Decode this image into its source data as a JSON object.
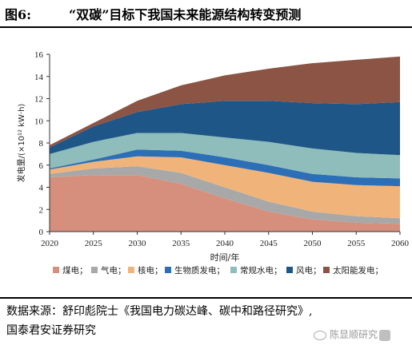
{
  "figure": {
    "number": "图6:",
    "title": "“双碳”目标下我国未来能源结构转变预测"
  },
  "source": {
    "line1": "数据来源：舒印彪院士《我国电力碳达峰、碳中和路径研究》,",
    "line2": "国泰君安证券研究"
  },
  "watermark": {
    "text": "陈显顺研究"
  },
  "chart_data": {
    "type": "area",
    "stacked": true,
    "title": "",
    "xlabel": "时间/年",
    "ylabel": "发电量/(×10¹² kW·h)",
    "x": [
      2020,
      2025,
      2030,
      2035,
      2040,
      2045,
      2050,
      2055,
      2060
    ],
    "xlim": [
      2020,
      2060
    ],
    "ylim": [
      0,
      16
    ],
    "yticks": [
      0,
      2,
      4,
      6,
      8,
      10,
      12,
      14,
      16
    ],
    "xtick_labels": [
      "2020",
      "2025",
      "2030",
      "2035",
      "2040",
      "2045",
      "2050",
      "2055",
      "2060"
    ],
    "ytick_labels": [
      "0",
      "2",
      "4",
      "6",
      "8",
      "10",
      "12",
      "14",
      "16"
    ],
    "grid": false,
    "legend_position": "bottom",
    "series": [
      {
        "name": "煤电",
        "color": "#d68f7c",
        "values": [
          4.9,
          5.1,
          5.1,
          4.3,
          3.0,
          1.8,
          1.1,
          0.8,
          0.7
        ]
      },
      {
        "name": "气电",
        "color": "#a8a8a8",
        "values": [
          0.3,
          0.6,
          0.8,
          1.0,
          1.0,
          0.9,
          0.7,
          0.6,
          0.5
        ]
      },
      {
        "name": "核电",
        "color": "#f0b47a",
        "values": [
          0.4,
          0.6,
          0.9,
          1.4,
          2.0,
          2.6,
          2.7,
          2.8,
          2.9
        ]
      },
      {
        "name": "生物质发电",
        "color": "#2c6fb6",
        "values": [
          0.1,
          0.2,
          0.6,
          0.6,
          0.7,
          0.7,
          0.7,
          0.7,
          0.7
        ]
      },
      {
        "name": "常规水电",
        "color": "#8fbdbb",
        "values": [
          1.3,
          1.6,
          1.5,
          1.6,
          1.8,
          2.1,
          2.3,
          2.2,
          2.1
        ]
      },
      {
        "name": "风电",
        "color": "#1f5688",
        "values": [
          0.6,
          1.4,
          1.9,
          2.6,
          3.3,
          3.7,
          4.1,
          4.4,
          4.8
        ]
      },
      {
        "name": "太阳能发电",
        "color": "#8b5444",
        "values": [
          0.2,
          0.3,
          1.0,
          1.7,
          2.3,
          2.9,
          3.6,
          4.0,
          4.1
        ]
      }
    ]
  }
}
